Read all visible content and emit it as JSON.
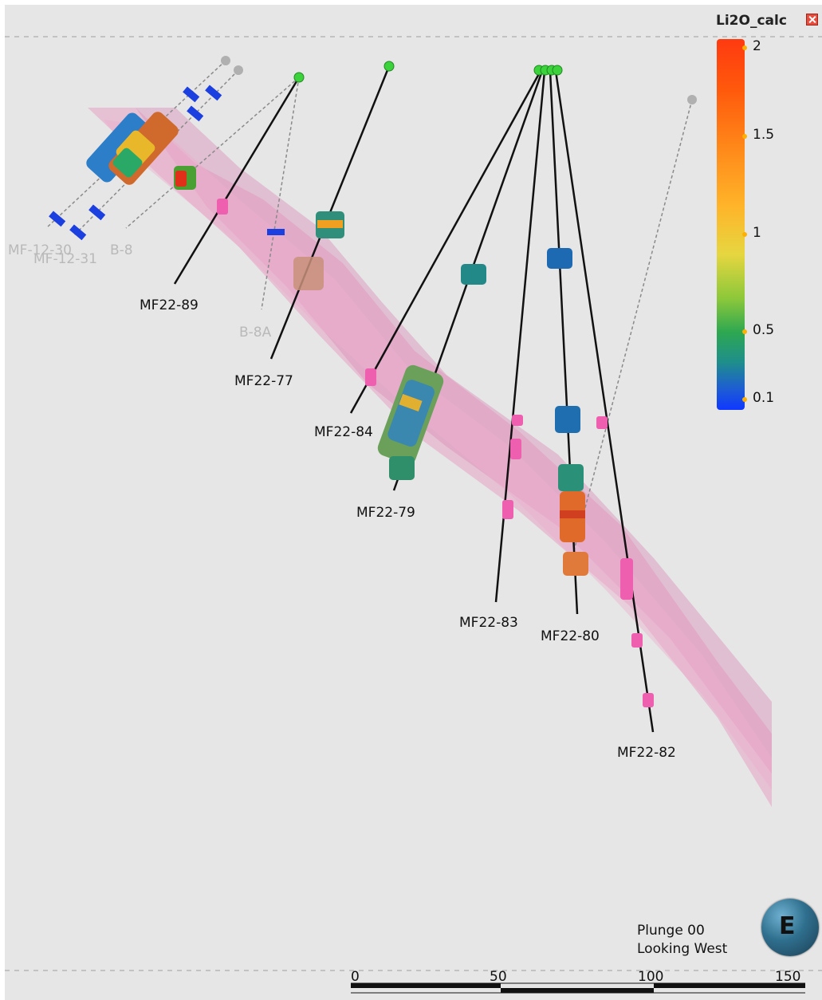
{
  "legend": {
    "title": "Li2O_calc",
    "colorbar_colors": [
      "#ff3a10",
      "#ff8a1a",
      "#ffb42a",
      "#e6d640",
      "#8cc83a",
      "#2ea850",
      "#1f8f8a",
      "#1e5fd0",
      "#1038ff"
    ],
    "ticks": [
      "2",
      "1.5",
      "1",
      "0.5",
      "0.1"
    ]
  },
  "drillholes": {
    "active": [
      "MF22-89",
      "MF22-77",
      "MF22-84",
      "MF22-79",
      "MF22-83",
      "MF22-80",
      "MF22-82"
    ],
    "historic": [
      "MF-12-30",
      "MF-12-31",
      "B-8",
      "B-8A"
    ]
  },
  "view": {
    "plunge": "Plunge 00",
    "direction": "Looking West",
    "compass": "E"
  },
  "scale_bar": {
    "ticks": [
      "0",
      "50",
      "100",
      "150"
    ]
  },
  "colors": {
    "background": "#e6e6e6",
    "pegmatite_zone": "#e58ab8",
    "trace": "#111111",
    "historic_trace": "#8a8a8a",
    "collar": "#3cd23c"
  }
}
